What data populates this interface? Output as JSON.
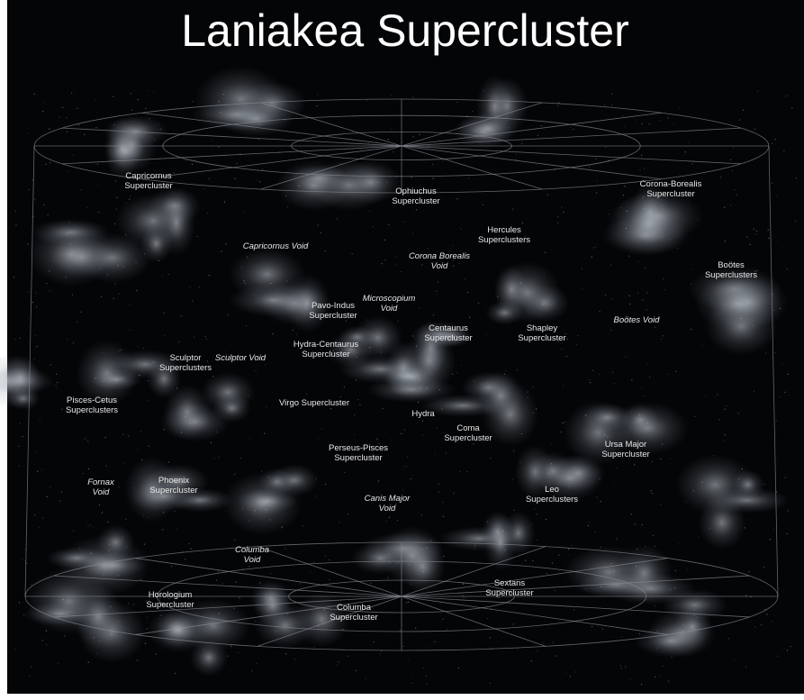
{
  "title": "Laniakea Supercluster",
  "labels": [
    {
      "lines": [
        "Capricornus",
        "Supercluster"
      ]
    },
    {
      "lines": [
        "Ophiuchus",
        "Supercluster"
      ]
    },
    {
      "lines": [
        "Corona-Borealis",
        "Supercluster"
      ]
    },
    {
      "lines": [
        "Hercules",
        "Superclusters"
      ]
    },
    {
      "lines": [
        "Capricornus Void"
      ]
    },
    {
      "lines": [
        "Corona Borealis",
        "Void"
      ]
    },
    {
      "lines": [
        "Boötes",
        "Superclusters"
      ]
    },
    {
      "lines": [
        "Pavo-Indus",
        "Supercluster"
      ]
    },
    {
      "lines": [
        "Microscopium",
        "Void"
      ]
    },
    {
      "lines": [
        "Centaurus",
        "Supercluster"
      ]
    },
    {
      "lines": [
        "Shapley",
        "Supercluster"
      ]
    },
    {
      "lines": [
        "Boötes Void"
      ]
    },
    {
      "lines": [
        "Hydra-Centaurus",
        "Supercluster"
      ]
    },
    {
      "lines": [
        "Sculptor Void"
      ]
    },
    {
      "lines": [
        "Sculptor",
        "Superclusters"
      ]
    },
    {
      "lines": [
        "Pisces-Cetus",
        "Superclusters"
      ]
    },
    {
      "lines": [
        "Virgo Supercluster"
      ]
    },
    {
      "lines": [
        "Hydra"
      ]
    },
    {
      "lines": [
        "Coma",
        "Supercluster"
      ]
    },
    {
      "lines": [
        "Ursa Major",
        "Supercluster"
      ]
    },
    {
      "lines": [
        "Perseus-Pisces",
        "Supercluster"
      ]
    },
    {
      "lines": [
        "Fornax",
        "Void"
      ]
    },
    {
      "lines": [
        "Phoenix",
        "Supercluster"
      ]
    },
    {
      "lines": [
        "Canis Major",
        "Void"
      ]
    },
    {
      "lines": [
        "Leo",
        "Superclusters"
      ]
    },
    {
      "lines": [
        "Columba",
        "Void"
      ]
    },
    {
      "lines": [
        "Horologium",
        "Supercluster"
      ]
    },
    {
      "lines": [
        "Sextans",
        "Supercluster"
      ]
    },
    {
      "lines": [
        "Columba",
        "Supercluster"
      ]
    }
  ]
}
